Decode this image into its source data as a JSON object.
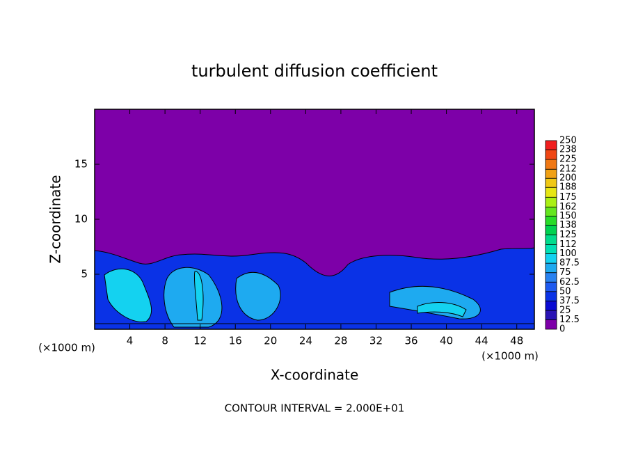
{
  "chart_data": {
    "type": "contour",
    "title": "turbulent diffusion coefficient",
    "xlabel": "X-coordinate",
    "ylabel": "Z-coordinate",
    "x_unit_left": "(×1000 m)",
    "x_unit_right": "(×1000 m)",
    "annotation": "CONTOUR INTERVAL = 2.000E+01",
    "xlim": [
      0,
      50
    ],
    "ylim": [
      0,
      20
    ],
    "xticks": [
      4,
      8,
      12,
      16,
      20,
      24,
      28,
      32,
      36,
      40,
      44,
      48
    ],
    "yticks": [
      5,
      10,
      15
    ],
    "colorbar": {
      "levels": [
        0,
        12.5,
        25,
        37.5,
        50,
        62.5,
        75,
        87.5,
        100,
        112,
        125,
        138,
        150,
        162,
        175,
        188,
        200,
        212,
        225,
        238,
        250
      ],
      "colors": [
        "#7d00a8",
        "#2a14b4",
        "#0a0ad2",
        "#0a32e6",
        "#1e5af0",
        "#2882f0",
        "#1eaaf0",
        "#14d2f0",
        "#00e0b4",
        "#00dc8c",
        "#00d250",
        "#28dc28",
        "#64e61e",
        "#aaf014",
        "#e6e614",
        "#f0c814",
        "#f0a014",
        "#f07814",
        "#f04614",
        "#f01e1e",
        "#f08c8c"
      ]
    }
  }
}
